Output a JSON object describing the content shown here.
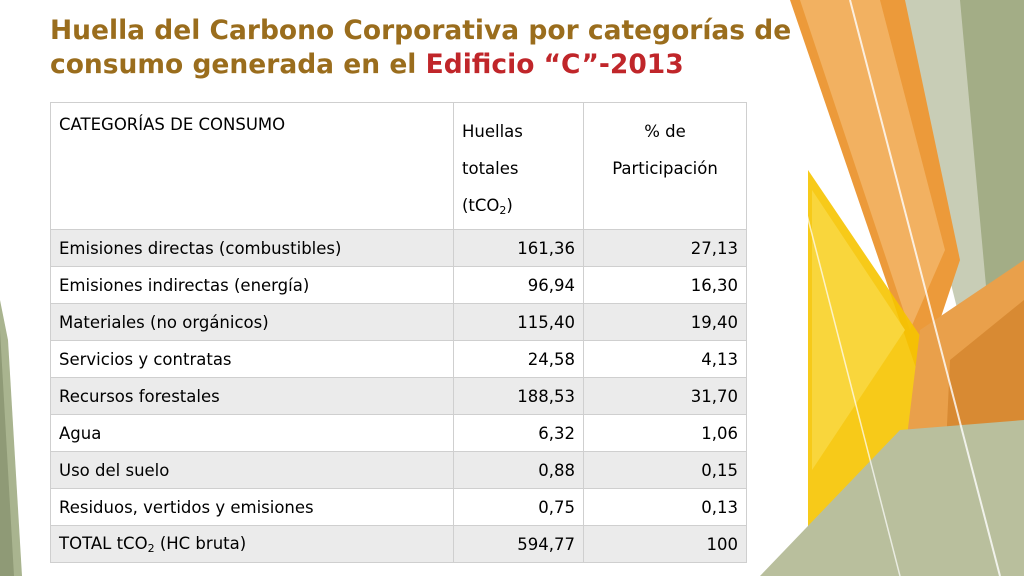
{
  "slide": {
    "title_part1": "Huella del Carbono Corporativa por categorías de consumo generada en el ",
    "title_part2": "Edificio “C”-2013"
  },
  "table": {
    "header": {
      "category": "CATEGORÍAS DE CONSUMO",
      "totals_line1": "Huellas",
      "totals_line2": "totales",
      "totals_line3_pre": "(tCO",
      "totals_line3_sub": "2",
      "totals_line3_post": ")",
      "pct_line1": "% de",
      "pct_line2": "Participación"
    },
    "rows": [
      {
        "category": "Emisiones directas (combustibles)",
        "total": "161,36",
        "pct": "27,13"
      },
      {
        "category": "Emisiones indirectas (energía)",
        "total": "96,94",
        "pct": "16,30"
      },
      {
        "category": "Materiales (no orgánicos)",
        "total": "115,40",
        "pct": "19,40"
      },
      {
        "category": "Servicios y contratas",
        "total": "24,58",
        "pct": "4,13"
      },
      {
        "category": "Recursos forestales",
        "total": "188,53",
        "pct": "31,70"
      },
      {
        "category": "Agua",
        "total": "6,32",
        "pct": "1,06"
      },
      {
        "category": "Uso del suelo",
        "total": "0,88",
        "pct": "0,15"
      },
      {
        "category": "Residuos, vertidos y emisiones",
        "total": "0,75",
        "pct": "0,13"
      }
    ],
    "total_row": {
      "label_pre": "TOTAL tCO",
      "label_sub": "2",
      "label_post": " (HC bruta)",
      "total": "594,77",
      "pct": "100"
    }
  },
  "colors": {
    "title": "#9a6d1d",
    "title_accent": "#c0262a",
    "orange": "#ea9a3c",
    "sage": "#a9b48f"
  }
}
